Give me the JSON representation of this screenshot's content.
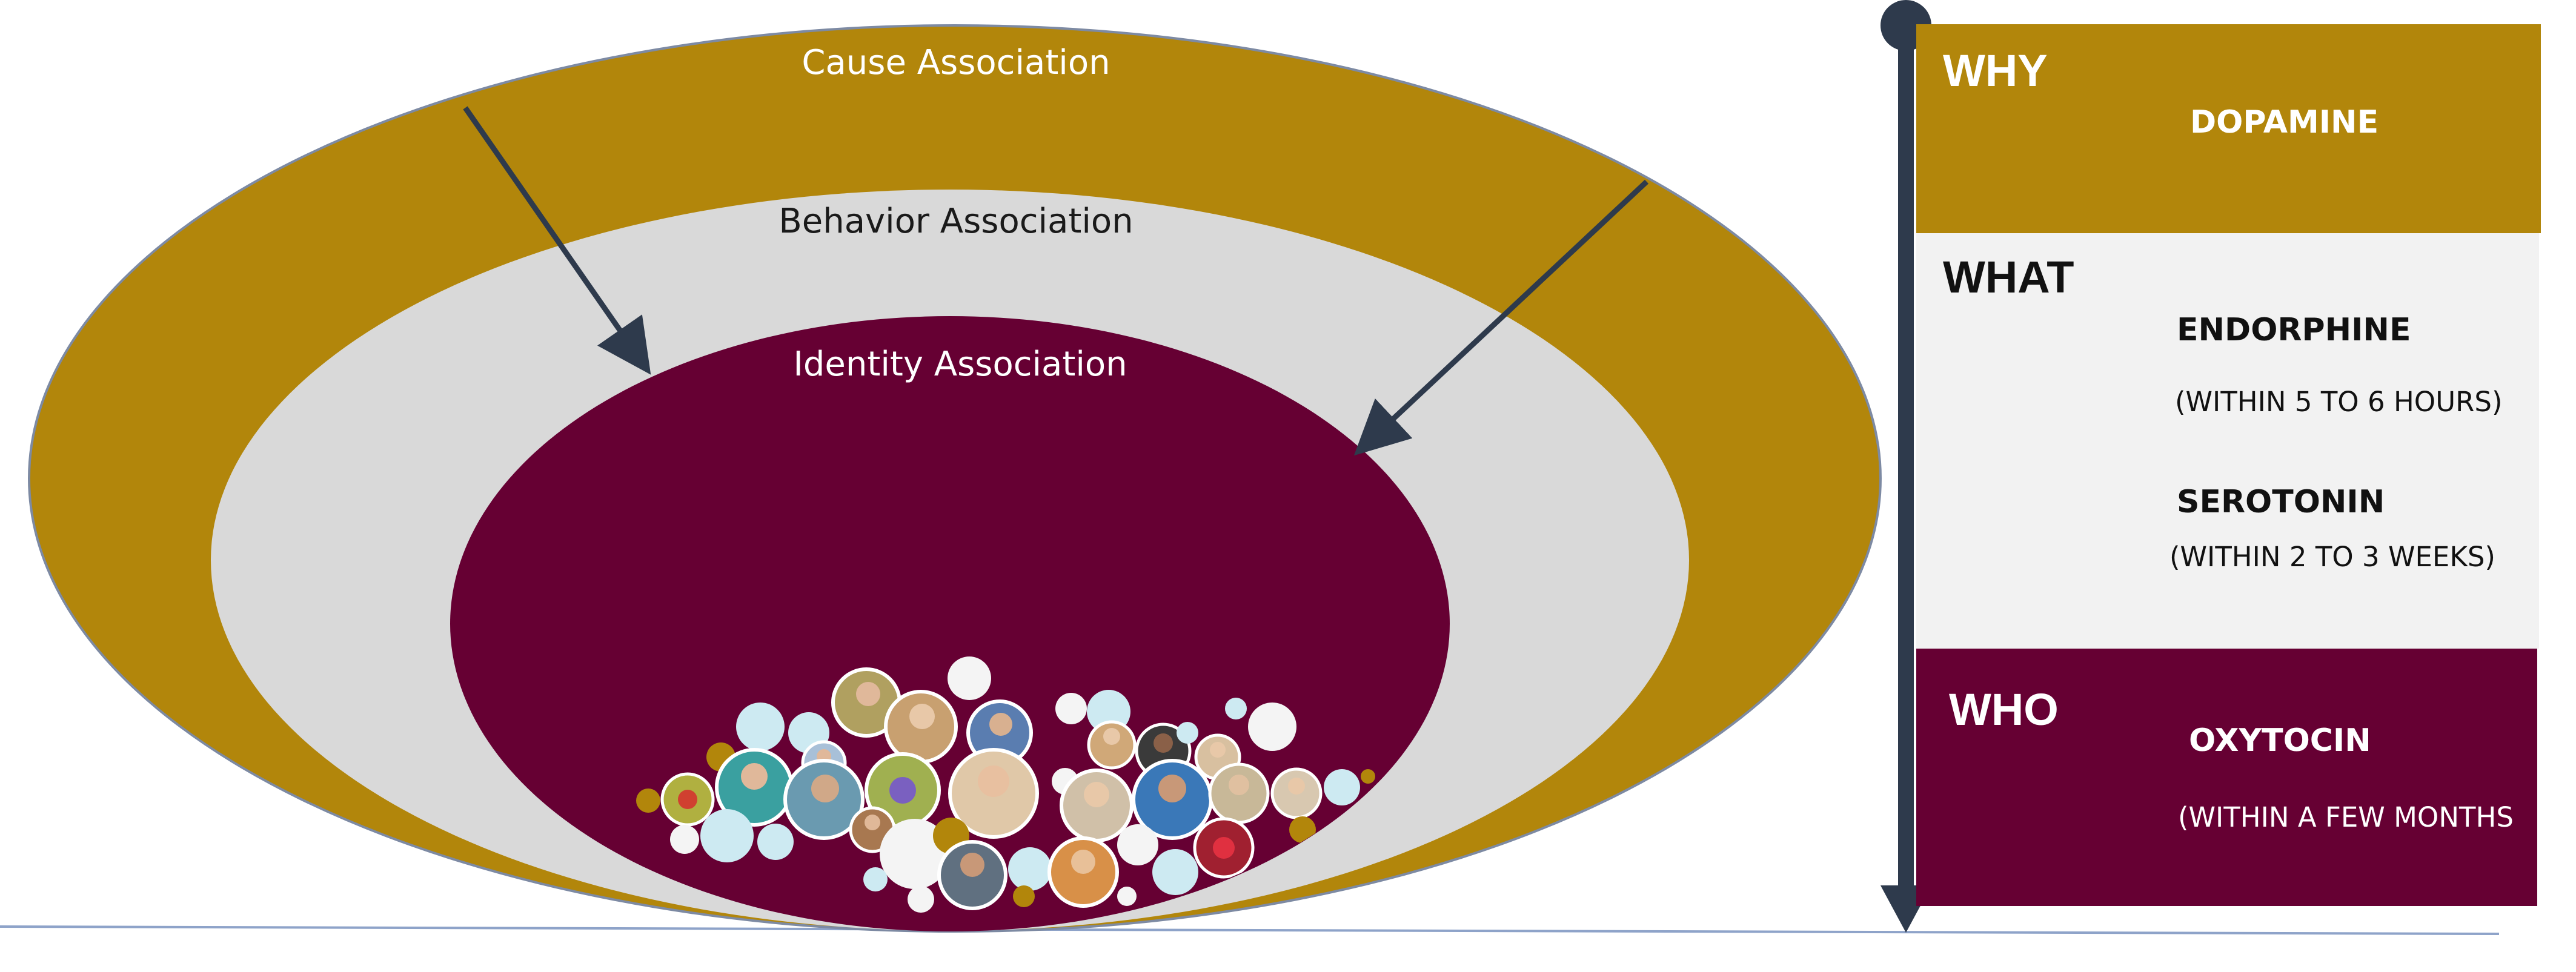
{
  "rings": {
    "cause_label": "Cause  Association",
    "behavior_label": "Behavior  Association",
    "identity_label": "Identity Association"
  },
  "panels": {
    "why": {
      "heading": "WHY",
      "chemical": "DOPAMINE"
    },
    "what": {
      "heading": "WHAT",
      "chemical_1": "ENDORPHINE",
      "timing_1": "(WITHIN 5 TO 6 HOURS)",
      "chemical_2": "SEROTONIN",
      "timing_2": "(WITHIN 2 TO 3 WEEKS)"
    },
    "who": {
      "heading": "WHO",
      "chemical": "OXYTOCIN",
      "timing": "(WITHIN A FEW MONTHS"
    }
  },
  "colors": {
    "gold": "#b2860b",
    "light_gray": "#d9d9d9",
    "maroon": "#660033",
    "navy": "#2e3a4c",
    "panel_gray": "#f2f2f2",
    "bubble_light_blue": "#cdeaf2",
    "bubble_white": "#f4f4f4"
  },
  "community_cluster": {
    "kind": "member-photo-bubbles"
  }
}
